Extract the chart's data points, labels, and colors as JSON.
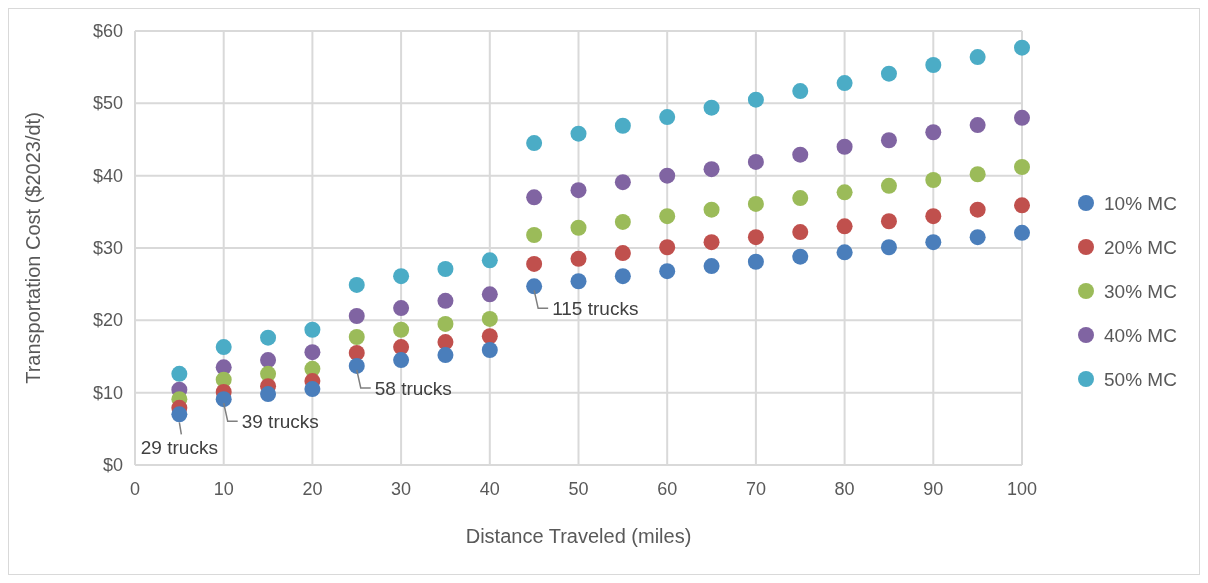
{
  "chart_data": {
    "type": "scatter",
    "xlabel": "Distance Traveled (miles)",
    "ylabel": "Transportation Cost ($2023/dt)",
    "x": [
      5,
      10,
      15,
      20,
      25,
      30,
      35,
      40,
      45,
      50,
      55,
      60,
      65,
      70,
      75,
      80,
      85,
      90,
      95,
      100
    ],
    "xlim": [
      0,
      100
    ],
    "xticks": [
      0,
      10,
      20,
      30,
      40,
      50,
      60,
      70,
      80,
      90,
      100
    ],
    "ylim": [
      0,
      60
    ],
    "yticks": [
      {
        "value": 0,
        "label": "$0"
      },
      {
        "value": 10,
        "label": "$10"
      },
      {
        "value": 20,
        "label": "$20"
      },
      {
        "value": 30,
        "label": "$30"
      },
      {
        "value": 40,
        "label": "$40"
      },
      {
        "value": 50,
        "label": "$50"
      },
      {
        "value": 60,
        "label": "$60"
      }
    ],
    "grid": true,
    "legend": "right",
    "marker": "circle",
    "series": [
      {
        "name": "10% MC",
        "color": "#4a7ebb",
        "values": [
          7.0,
          9.1,
          9.8,
          10.5,
          13.7,
          14.5,
          15.2,
          15.9,
          24.7,
          25.4,
          26.1,
          26.8,
          27.5,
          28.1,
          28.8,
          29.4,
          30.1,
          30.8,
          31.5,
          32.1
        ]
      },
      {
        "name": "20% MC",
        "color": "#c0504d",
        "values": [
          7.9,
          10.1,
          10.9,
          11.6,
          15.5,
          16.3,
          17.0,
          17.8,
          27.8,
          28.5,
          29.3,
          30.1,
          30.8,
          31.5,
          32.2,
          33.0,
          33.7,
          34.4,
          35.3,
          35.9
        ]
      },
      {
        "name": "30% MC",
        "color": "#9bbb59",
        "values": [
          9.1,
          11.8,
          12.6,
          13.3,
          17.7,
          18.7,
          19.5,
          20.2,
          31.8,
          32.8,
          33.6,
          34.4,
          35.3,
          36.1,
          36.9,
          37.7,
          38.6,
          39.4,
          40.2,
          41.2
        ]
      },
      {
        "name": "40% MC",
        "color": "#8064a2",
        "values": [
          10.4,
          13.5,
          14.5,
          15.6,
          20.6,
          21.7,
          22.7,
          23.6,
          37.0,
          38.0,
          39.1,
          40.0,
          40.9,
          41.9,
          42.9,
          44.0,
          44.9,
          46.0,
          47.0,
          48.0
        ]
      },
      {
        "name": "50% MC",
        "color": "#4bacc6",
        "values": [
          12.6,
          16.3,
          17.6,
          18.7,
          24.9,
          26.1,
          27.1,
          28.3,
          44.5,
          45.8,
          46.9,
          48.1,
          49.4,
          50.5,
          51.7,
          52.8,
          54.1,
          55.3,
          56.4,
          57.7
        ]
      }
    ],
    "annotations": [
      {
        "text": "29 trucks",
        "x": 5,
        "y": 7.0
      },
      {
        "text": "39 trucks",
        "x": 10,
        "y": 9.1
      },
      {
        "text": "58 trucks",
        "x": 25,
        "y": 13.7
      },
      {
        "text": "115 trucks",
        "x": 45,
        "y": 24.7
      }
    ]
  }
}
